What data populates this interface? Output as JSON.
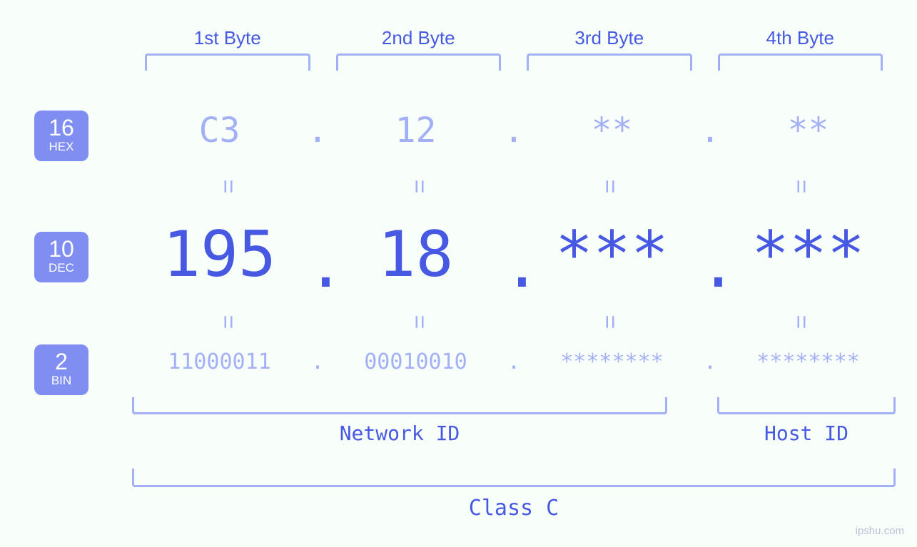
{
  "colors": {
    "background": "#f8fffa",
    "accent": "#4759e3",
    "accent_light": "#a3b0f5",
    "badge_bg": "#7f8ef0",
    "badge_text": "#ffffff",
    "bracket": "#a3b0f5"
  },
  "typography": {
    "mono_family": "Menlo, Consolas, monospace",
    "hex_fontsize": 48,
    "dec_fontsize": 88,
    "bin_fontsize": 30,
    "label_fontsize": 26
  },
  "byte_headers": [
    "1st Byte",
    "2nd Byte",
    "3rd Byte",
    "4th Byte"
  ],
  "bases": {
    "hex": {
      "num": "16",
      "name": "HEX"
    },
    "dec": {
      "num": "10",
      "name": "DEC"
    },
    "bin": {
      "num": "2",
      "name": "BIN"
    }
  },
  "rows": {
    "hex": [
      "C3",
      "12",
      "**",
      "**"
    ],
    "dec": [
      "195",
      "18",
      "***",
      "***"
    ],
    "bin": [
      "11000011",
      "00010010",
      "********",
      "********"
    ]
  },
  "separator": ".",
  "equals": "=",
  "ids": {
    "network": "Network ID",
    "host": "Host ID"
  },
  "class_label": "Class C",
  "watermark": "ipshu.com"
}
